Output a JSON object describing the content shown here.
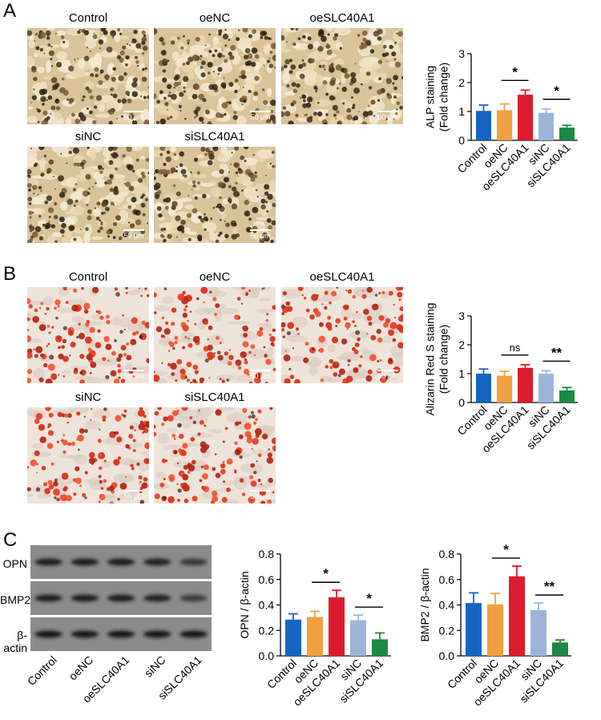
{
  "panels": {
    "A": {
      "letter": "A",
      "images": [
        "Control",
        "oeNC",
        "oeSLC40A1",
        "siNC",
        "siSLC40A1"
      ]
    },
    "B": {
      "letter": "B",
      "images": [
        "Control",
        "oeNC",
        "oeSLC40A1",
        "siNC",
        "siSLC40A1"
      ]
    },
    "C": {
      "letter": "C"
    }
  },
  "scale_bar": "50 μm",
  "blot": {
    "rows": [
      "OPN",
      "BMP2",
      "β-actin"
    ],
    "lanes": [
      "Control",
      "oeNC",
      "oeSLC40A1",
      "siNC",
      "siSLC40A1"
    ]
  },
  "colors": {
    "Control": "#1565c0",
    "oeNC": "#f0a040",
    "oeSLC40A1": "#dc1c2c",
    "siNC": "#9bb5d9",
    "siSLC40A1": "#1a8a44"
  },
  "chart_data": [
    {
      "id": "alp",
      "type": "bar",
      "categories": [
        "Control",
        "oeNC",
        "oeSLC40A1",
        "siNC",
        "siSLC40A1"
      ],
      "values": [
        1.02,
        1.04,
        1.58,
        0.95,
        0.44
      ],
      "errors": [
        0.2,
        0.22,
        0.16,
        0.14,
        0.08
      ],
      "ylabel": [
        "ALP staining",
        "(Fold change)"
      ],
      "ylim": [
        0,
        3
      ],
      "yticks": [
        0,
        1,
        2,
        3
      ],
      "significance": [
        {
          "from": "oeNC",
          "to": "oeSLC40A1",
          "label": "*"
        },
        {
          "from": "siNC",
          "to": "siSLC40A1",
          "label": "*"
        }
      ]
    },
    {
      "id": "ars",
      "type": "bar",
      "categories": [
        "Control",
        "oeNC",
        "oeSLC40A1",
        "siNC",
        "siSLC40A1"
      ],
      "values": [
        1.0,
        0.93,
        1.2,
        1.0,
        0.42
      ],
      "errors": [
        0.16,
        0.15,
        0.11,
        0.1,
        0.1
      ],
      "ylabel": [
        "Alizarin Red S staining",
        "(Fold change)"
      ],
      "ylim": [
        0,
        3
      ],
      "yticks": [
        0,
        1,
        2,
        3
      ],
      "significance": [
        {
          "from": "oeNC",
          "to": "oeSLC40A1",
          "label": "ns"
        },
        {
          "from": "siNC",
          "to": "siSLC40A1",
          "label": "**"
        }
      ]
    },
    {
      "id": "opn",
      "type": "bar",
      "categories": [
        "Control",
        "oeNC",
        "oeSLC40A1",
        "siNC",
        "siSLC40A1"
      ],
      "values": [
        0.285,
        0.305,
        0.46,
        0.28,
        0.13
      ],
      "errors": [
        0.045,
        0.045,
        0.055,
        0.04,
        0.05
      ],
      "ylabel": [
        "OPN / β-actin"
      ],
      "ylim": [
        0,
        0.8
      ],
      "yticks": [
        0.0,
        0.2,
        0.4,
        0.6,
        0.8
      ],
      "significance": [
        {
          "from": "oeNC",
          "to": "oeSLC40A1",
          "label": "*"
        },
        {
          "from": "siNC",
          "to": "siSLC40A1",
          "label": "*"
        }
      ]
    },
    {
      "id": "bmp2",
      "type": "bar",
      "categories": [
        "Control",
        "oeNC",
        "oeSLC40A1",
        "siNC",
        "siSLC40A1"
      ],
      "values": [
        0.415,
        0.405,
        0.625,
        0.36,
        0.105
      ],
      "errors": [
        0.08,
        0.085,
        0.08,
        0.055,
        0.02
      ],
      "ylabel": [
        "BMP2 / β-actin"
      ],
      "ylim": [
        0,
        0.8
      ],
      "yticks": [
        0.0,
        0.2,
        0.4,
        0.6,
        0.8
      ],
      "significance": [
        {
          "from": "oeNC",
          "to": "oeSLC40A1",
          "label": "*"
        },
        {
          "from": "siNC",
          "to": "siSLC40A1",
          "label": "**"
        }
      ]
    }
  ]
}
